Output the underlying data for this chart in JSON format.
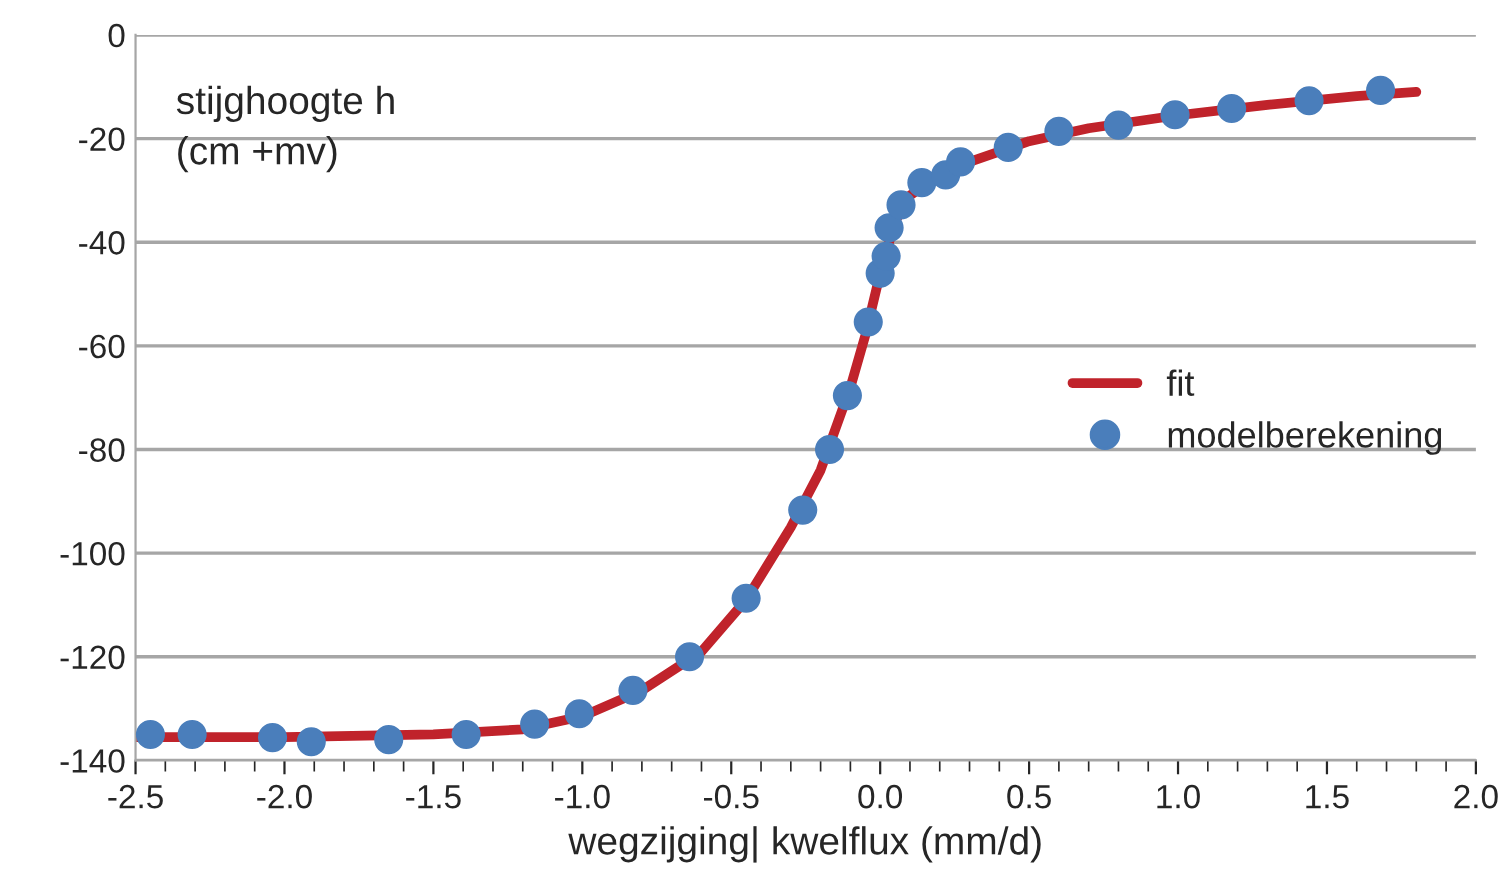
{
  "chart_data": {
    "type": "scatter",
    "ylabel": "stijghoogte h\n(cm +mv)",
    "xlabel": "wegzijging| kwelflux (mm/d)",
    "xlim": [
      -2.5,
      2.0
    ],
    "xticks": [
      {
        "value": -2.5,
        "label": "-2.5"
      },
      {
        "value": -2.0,
        "label": "-2.0"
      },
      {
        "value": -1.5,
        "label": "-1.5"
      },
      {
        "value": -1.0,
        "label": "-1.0"
      },
      {
        "value": -0.5,
        "label": "-0.5"
      },
      {
        "value": 0,
        "label": "0.0"
      },
      {
        "value": 0.5,
        "label": "0.5"
      },
      {
        "value": 1.0,
        "label": "1.0"
      },
      {
        "value": 1.5,
        "label": "1.5"
      },
      {
        "value": 2.0,
        "label": "2.0"
      }
    ],
    "ylim": [
      -140,
      0
    ],
    "yticks": [
      -140,
      -120,
      -100,
      -80,
      -60,
      -40,
      -20,
      0
    ],
    "grid": "y",
    "legend": "right",
    "series": [
      {
        "name": "fit",
        "type": "line",
        "color": "#c0232b",
        "marker": "none",
        "line_style": "solid",
        "x": [
          -2.5,
          -2.0,
          -1.5,
          -1.2,
          -1.0,
          -0.8,
          -0.6,
          -0.45,
          -0.3,
          -0.2,
          -0.1,
          -0.05,
          0,
          0.05,
          0.1,
          0.2,
          0.3,
          0.5,
          0.7,
          1.0,
          1.3,
          1.6,
          1.8
        ],
        "values": [
          -135.5,
          -135.5,
          -135,
          -134,
          -131.5,
          -126.5,
          -119,
          -109,
          -95,
          -84,
          -68,
          -58,
          -46,
          -36,
          -31,
          -27,
          -24.5,
          -20.5,
          -18,
          -15.5,
          -13.5,
          -11.8,
          -11
        ]
      },
      {
        "name": "modelberekening",
        "color": "#4a7ebb",
        "marker": "circle",
        "x": [
          -2.45,
          -2.31,
          -2.04,
          -1.91,
          -1.65,
          -1.39,
          -1.16,
          -1.01,
          -0.83,
          -0.64,
          -0.45,
          -0.26,
          -0.17,
          -0.11,
          -0.04,
          0.0,
          0.01,
          0.02,
          0.03,
          0.07,
          0.14,
          0.22,
          0.27,
          0.43,
          0.6,
          0.8,
          0.99,
          1.18,
          1.44,
          1.68
        ],
        "values": [
          -135,
          -135,
          -135.6,
          -136.4,
          -136,
          -135,
          -133,
          -131,
          -126.5,
          -120,
          -108.7,
          -91.7,
          -80,
          -69.6,
          -55.4,
          -46,
          null,
          -42.7,
          -37.2,
          -32.8,
          -28.5,
          -27,
          -24.5,
          -21.7,
          -18.6,
          -17.4,
          -15.4,
          -14.2,
          -12.7,
          -10.7
        ]
      }
    ]
  }
}
